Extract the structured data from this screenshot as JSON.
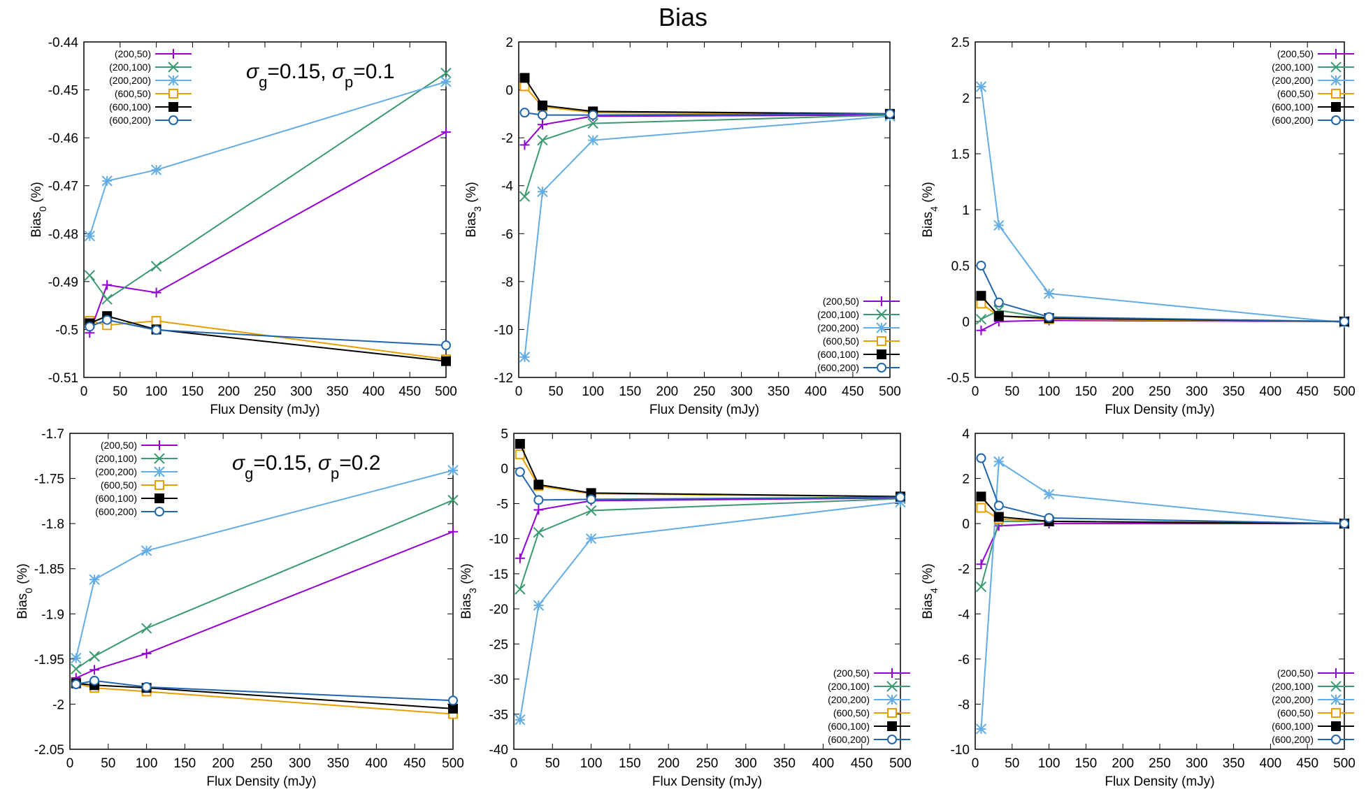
{
  "title": "Bias",
  "colors": {
    "(200,50)": "#9400d3",
    "(200,100)": "#3b9a6f",
    "(200,200)": "#63ade6",
    "(600,50)": "#e69f00",
    "(600,100)": "#000000",
    "(600,200)": "#2166ac"
  },
  "chart_data": [
    {
      "type": "line",
      "title": "",
      "annotation": "σg=0.15, σp=0.1",
      "xlabel": "Flux Density (mJy)",
      "ylabel": "Bias0 (%)",
      "xlim": [
        0,
        500
      ],
      "ylim": [
        -0.51,
        -0.44
      ],
      "xticks": [
        0,
        50,
        100,
        150,
        200,
        250,
        300,
        350,
        400,
        450,
        500
      ],
      "yticks": [
        -0.51,
        -0.5,
        -0.49,
        -0.48,
        -0.47,
        -0.46,
        -0.45,
        -0.44
      ],
      "ytick_labels": [
        "-0.51",
        "-0.5",
        "-0.49",
        "-0.48",
        "-0.47",
        "-0.46",
        "-0.45",
        "-0.44"
      ],
      "legend_position": "top-left",
      "x": [
        8,
        32,
        100,
        500
      ],
      "series": [
        {
          "name": "(200,50)",
          "marker": "plus",
          "values": [
            -0.5007,
            -0.4907,
            -0.4923,
            -0.4588
          ]
        },
        {
          "name": "(200,100)",
          "marker": "x",
          "values": [
            -0.4887,
            -0.4937,
            -0.4868,
            -0.4465
          ]
        },
        {
          "name": "(200,200)",
          "marker": "star",
          "values": [
            -0.4805,
            -0.469,
            -0.4667,
            -0.4483
          ]
        },
        {
          "name": "(600,50)",
          "marker": "square-open",
          "values": [
            -0.4982,
            -0.4991,
            -0.4982,
            -0.5062
          ]
        },
        {
          "name": "(600,100)",
          "marker": "square-filled",
          "values": [
            -0.4987,
            -0.4972,
            -0.5,
            -0.5066
          ]
        },
        {
          "name": "(600,200)",
          "marker": "circle-open",
          "values": [
            -0.4994,
            -0.498,
            -0.5001,
            -0.5033
          ]
        }
      ]
    },
    {
      "type": "line",
      "title": "",
      "annotation": "",
      "xlabel": "Flux Density (mJy)",
      "ylabel": "Bias3 (%)",
      "xlim": [
        0,
        500
      ],
      "ylim": [
        -12,
        2
      ],
      "xticks": [
        0,
        50,
        100,
        150,
        200,
        250,
        300,
        350,
        400,
        450,
        500
      ],
      "yticks": [
        -12,
        -10,
        -8,
        -6,
        -4,
        -2,
        0,
        2
      ],
      "ytick_labels": [
        "-12",
        "-10",
        "-8",
        "-6",
        "-4",
        "-2",
        "0",
        "2"
      ],
      "legend_position": "bottom-right",
      "x": [
        8,
        32,
        100,
        500
      ],
      "series": [
        {
          "name": "(200,50)",
          "marker": "plus",
          "values": [
            -2.3,
            -1.45,
            -1.1,
            -1.05
          ]
        },
        {
          "name": "(200,100)",
          "marker": "x",
          "values": [
            -4.45,
            -2.1,
            -1.4,
            -1.05
          ]
        },
        {
          "name": "(200,200)",
          "marker": "star",
          "values": [
            -11.15,
            -4.25,
            -2.1,
            -1.1
          ]
        },
        {
          "name": "(600,50)",
          "marker": "square-open",
          "values": [
            0.15,
            -0.7,
            -0.95,
            -1.0
          ]
        },
        {
          "name": "(600,100)",
          "marker": "square-filled",
          "values": [
            0.5,
            -0.65,
            -0.9,
            -1.0
          ]
        },
        {
          "name": "(600,200)",
          "marker": "circle-open",
          "values": [
            -0.95,
            -1.05,
            -1.05,
            -1.0
          ]
        }
      ]
    },
    {
      "type": "line",
      "title": "",
      "annotation": "",
      "xlabel": "Flux Density (mJy)",
      "ylabel": "Bias4 (%)",
      "xlim": [
        0,
        500
      ],
      "ylim": [
        -0.5,
        2.5
      ],
      "xticks": [
        0,
        50,
        100,
        150,
        200,
        250,
        300,
        350,
        400,
        450,
        500
      ],
      "yticks": [
        -0.5,
        0,
        0.5,
        1,
        1.5,
        2,
        2.5
      ],
      "ytick_labels": [
        "-0.5",
        "0",
        "0.5",
        "1",
        "1.5",
        "2",
        "2.5"
      ],
      "legend_position": "top-right",
      "x": [
        8,
        32,
        100,
        500
      ],
      "series": [
        {
          "name": "(200,50)",
          "marker": "plus",
          "values": [
            -0.08,
            0.0,
            0.01,
            0.0
          ]
        },
        {
          "name": "(200,100)",
          "marker": "x",
          "values": [
            0.02,
            0.1,
            0.03,
            0.0
          ]
        },
        {
          "name": "(200,200)",
          "marker": "star",
          "values": [
            2.1,
            0.86,
            0.25,
            -0.01
          ]
        },
        {
          "name": "(600,50)",
          "marker": "square-open",
          "values": [
            0.16,
            0.05,
            0.02,
            0.0
          ]
        },
        {
          "name": "(600,100)",
          "marker": "square-filled",
          "values": [
            0.23,
            0.05,
            0.03,
            0.0
          ]
        },
        {
          "name": "(600,200)",
          "marker": "circle-open",
          "values": [
            0.5,
            0.17,
            0.04,
            0.0
          ]
        }
      ]
    },
    {
      "type": "line",
      "title": "",
      "annotation": "σg=0.15, σp=0.2",
      "xlabel": "Flux Density (mJy)",
      "ylabel": "Bias0 (%)",
      "xlim": [
        0,
        500
      ],
      "ylim": [
        -2.05,
        -1.7
      ],
      "xticks": [
        0,
        50,
        100,
        150,
        200,
        250,
        300,
        350,
        400,
        450,
        500
      ],
      "yticks": [
        -2.05,
        -2,
        -1.95,
        -1.9,
        -1.85,
        -1.8,
        -1.75,
        -1.7
      ],
      "ytick_labels": [
        "-2.05",
        "-2",
        "-1.95",
        "-1.9",
        "-1.85",
        "-1.8",
        "-1.75",
        "-1.7"
      ],
      "legend_position": "top-left",
      "x": [
        8,
        32,
        100,
        500
      ],
      "series": [
        {
          "name": "(200,50)",
          "marker": "plus",
          "values": [
            -1.971,
            -1.962,
            -1.944,
            -1.809
          ]
        },
        {
          "name": "(200,100)",
          "marker": "x",
          "values": [
            -1.961,
            -1.947,
            -1.916,
            -1.774
          ]
        },
        {
          "name": "(200,200)",
          "marker": "star",
          "values": [
            -1.949,
            -1.862,
            -1.83,
            -1.741
          ]
        },
        {
          "name": "(600,50)",
          "marker": "square-open",
          "values": [
            -1.977,
            -1.982,
            -1.986,
            -2.011
          ]
        },
        {
          "name": "(600,100)",
          "marker": "square-filled",
          "values": [
            -1.977,
            -1.979,
            -1.982,
            -2.005
          ]
        },
        {
          "name": "(600,200)",
          "marker": "circle-open",
          "values": [
            -1.978,
            -1.974,
            -1.981,
            -1.996
          ]
        }
      ]
    },
    {
      "type": "line",
      "title": "",
      "annotation": "",
      "xlabel": "Flux Density (mJy)",
      "ylabel": "Bias3 (%)",
      "xlim": [
        0,
        500
      ],
      "ylim": [
        -40,
        5
      ],
      "xticks": [
        0,
        50,
        100,
        150,
        200,
        250,
        300,
        350,
        400,
        450,
        500
      ],
      "yticks": [
        -40,
        -35,
        -30,
        -25,
        -20,
        -15,
        -10,
        -5,
        0,
        5
      ],
      "ytick_labels": [
        "-40",
        "-35",
        "-30",
        "-25",
        "-20",
        "-15",
        "-10",
        "-5",
        "0",
        "5"
      ],
      "legend_position": "bottom-right",
      "x": [
        8,
        32,
        100,
        500
      ],
      "series": [
        {
          "name": "(200,50)",
          "marker": "plus",
          "values": [
            -12.8,
            -5.9,
            -4.6,
            -4.2
          ]
        },
        {
          "name": "(200,100)",
          "marker": "x",
          "values": [
            -17.2,
            -9.1,
            -6.0,
            -4.3
          ]
        },
        {
          "name": "(200,200)",
          "marker": "star",
          "values": [
            -35.8,
            -19.5,
            -10.0,
            -4.8
          ]
        },
        {
          "name": "(600,50)",
          "marker": "square-open",
          "values": [
            2.0,
            -2.5,
            -3.6,
            -4.0
          ]
        },
        {
          "name": "(600,100)",
          "marker": "square-filled",
          "values": [
            3.5,
            -2.3,
            -3.5,
            -4.0
          ]
        },
        {
          "name": "(600,200)",
          "marker": "circle-open",
          "values": [
            -0.5,
            -4.5,
            -4.4,
            -4.1
          ]
        }
      ]
    },
    {
      "type": "line",
      "title": "",
      "annotation": "",
      "xlabel": "Flux Density (mJy)",
      "ylabel": "Bias4 (%)",
      "xlim": [
        0,
        500
      ],
      "ylim": [
        -10,
        4
      ],
      "xticks": [
        0,
        50,
        100,
        150,
        200,
        250,
        300,
        350,
        400,
        450,
        500
      ],
      "yticks": [
        -10,
        -8,
        -6,
        -4,
        -2,
        0,
        2,
        4
      ],
      "ytick_labels": [
        "-10",
        "-8",
        "-6",
        "-4",
        "-2",
        "0",
        "2",
        "4"
      ],
      "legend_position": "bottom-right",
      "x": [
        8,
        32,
        100,
        500
      ],
      "series": [
        {
          "name": "(200,50)",
          "marker": "plus",
          "values": [
            -1.8,
            -0.1,
            0.0,
            0.0
          ]
        },
        {
          "name": "(200,100)",
          "marker": "x",
          "values": [
            -2.8,
            0.1,
            0.1,
            0.0
          ]
        },
        {
          "name": "(200,200)",
          "marker": "star",
          "values": [
            -9.1,
            2.75,
            1.3,
            0.0
          ]
        },
        {
          "name": "(600,50)",
          "marker": "square-open",
          "values": [
            0.7,
            0.2,
            0.1,
            0.0
          ]
        },
        {
          "name": "(600,100)",
          "marker": "square-filled",
          "values": [
            1.2,
            0.3,
            0.1,
            0.0
          ]
        },
        {
          "name": "(600,200)",
          "marker": "circle-open",
          "values": [
            2.9,
            0.8,
            0.25,
            0.0
          ]
        }
      ]
    }
  ]
}
